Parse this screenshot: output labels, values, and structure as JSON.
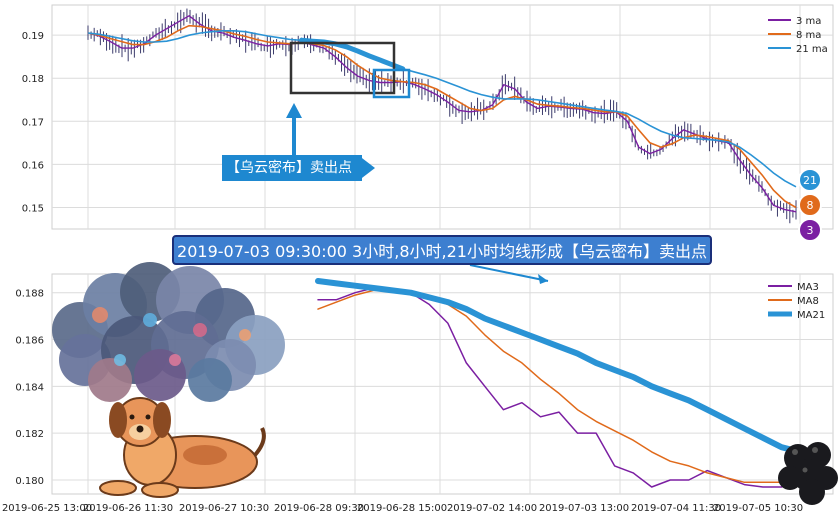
{
  "chart_data": [
    {
      "type": "line",
      "title": "",
      "xlabel": "",
      "ylabel": "",
      "ylim": [
        0.145,
        0.197
      ],
      "yticks": [
        0.15,
        0.16,
        0.17,
        0.18,
        0.19
      ],
      "grid": true,
      "legend_position": "top-right",
      "series": [
        {
          "name": "3 ma",
          "color": "#7b1fa2",
          "values": [
            0.1905,
            0.1898,
            0.1885,
            0.187,
            0.187,
            0.188,
            0.19,
            0.1915,
            0.193,
            0.1945,
            0.1925,
            0.191,
            0.1905,
            0.1895,
            0.1888,
            0.188,
            0.1875,
            0.188,
            0.1878,
            0.1885,
            0.1877,
            0.187,
            0.185,
            0.1825,
            0.1805,
            0.1795,
            0.179,
            0.179,
            0.1792,
            0.1786,
            0.1775,
            0.1762,
            0.1745,
            0.1725,
            0.1722,
            0.1725,
            0.1738,
            0.1785,
            0.1775,
            0.1745,
            0.173,
            0.1735,
            0.1733,
            0.173,
            0.1728,
            0.172,
            0.1718,
            0.1722,
            0.17,
            0.164,
            0.1625,
            0.1635,
            0.166,
            0.168,
            0.167,
            0.166,
            0.1655,
            0.165,
            0.161,
            0.1575,
            0.1545,
            0.1505,
            0.1495,
            0.149
          ]
        },
        {
          "name": "8 ma",
          "color": "#e06a1b",
          "values": [
            0.1905,
            0.19,
            0.1892,
            0.1885,
            0.1878,
            0.1878,
            0.1885,
            0.1895,
            0.191,
            0.1922,
            0.192,
            0.1915,
            0.191,
            0.1903,
            0.1897,
            0.189,
            0.1884,
            0.1882,
            0.188,
            0.1883,
            0.188,
            0.1876,
            0.1866,
            0.185,
            0.183,
            0.1813,
            0.18,
            0.1795,
            0.1792,
            0.179,
            0.1785,
            0.1775,
            0.176,
            0.1745,
            0.173,
            0.1725,
            0.173,
            0.175,
            0.1758,
            0.175,
            0.174,
            0.1737,
            0.1735,
            0.1732,
            0.173,
            0.1726,
            0.1722,
            0.1722,
            0.1712,
            0.168,
            0.165,
            0.164,
            0.1648,
            0.1662,
            0.1668,
            0.1665,
            0.166,
            0.1655,
            0.1635,
            0.1605,
            0.1575,
            0.154,
            0.1515,
            0.15
          ]
        },
        {
          "name": "21 ma",
          "color": "#2a93d5",
          "values": [
            0.1905,
            0.1902,
            0.1897,
            0.1892,
            0.1887,
            0.1884,
            0.1884,
            0.1886,
            0.1892,
            0.19,
            0.1905,
            0.1908,
            0.191,
            0.191,
            0.1908,
            0.1903,
            0.1898,
            0.1894,
            0.189,
            0.1888,
            0.1886,
            0.1884,
            0.188,
            0.1873,
            0.1863,
            0.1852,
            0.1842,
            0.1832,
            0.1822,
            0.1815,
            0.1808,
            0.18,
            0.179,
            0.178,
            0.177,
            0.1762,
            0.1756,
            0.1752,
            0.1752,
            0.1752,
            0.175,
            0.1746,
            0.1742,
            0.1738,
            0.1734,
            0.173,
            0.1726,
            0.1723,
            0.1718,
            0.1705,
            0.169,
            0.1677,
            0.1668,
            0.1662,
            0.166,
            0.1658,
            0.1656,
            0.1652,
            0.164,
            0.1622,
            0.1602,
            0.158,
            0.1562,
            0.1548
          ]
        }
      ]
    },
    {
      "type": "line",
      "title": "",
      "xlabel": "",
      "ylabel": "",
      "ylim": [
        0.1794,
        0.1888
      ],
      "yticks": [
        0.18,
        0.182,
        0.184,
        0.186,
        0.188
      ],
      "x_tick_labels": [
        "2019-06-25 13:00",
        "2019-06-26 11:30",
        "2019-06-27 10:30",
        "2019-06-28 09:30",
        "2019-06-28 15:00",
        "2019-07-02 14:00",
        "2019-07-03 13:00",
        "2019-07-04 11:30",
        "2019-07-05 10:30"
      ],
      "grid": true,
      "legend_position": "top-right",
      "series": [
        {
          "name": "MA3",
          "color": "#7b1fa2",
          "values": [
            0.1877,
            0.1877,
            0.188,
            0.1882,
            0.1881,
            0.188,
            0.1875,
            0.1867,
            0.185,
            0.184,
            0.183,
            0.1833,
            0.1827,
            0.1829,
            0.182,
            0.182,
            0.1806,
            0.1803,
            0.1797,
            0.18,
            0.18,
            0.1804,
            0.1801,
            0.1798,
            0.1797,
            0.1797,
            0.18
          ]
        },
        {
          "name": "MA8",
          "color": "#e06a1b",
          "values": [
            0.1873,
            0.1876,
            0.1879,
            0.1881,
            0.1881,
            0.188,
            0.1878,
            0.1875,
            0.187,
            0.1862,
            0.1855,
            0.185,
            0.1843,
            0.1837,
            0.183,
            0.1825,
            0.1821,
            0.1817,
            0.1812,
            0.1808,
            0.1806,
            0.1803,
            0.1801,
            0.1799,
            0.1799,
            0.1799,
            0.1799
          ]
        },
        {
          "name": "MA21",
          "color": "#2a93d5",
          "values": [
            0.1885,
            0.1884,
            0.1883,
            0.1882,
            0.1881,
            0.188,
            0.1878,
            0.1876,
            0.1873,
            0.1869,
            0.1866,
            0.1863,
            0.186,
            0.1857,
            0.1854,
            0.185,
            0.1847,
            0.1844,
            0.184,
            0.1837,
            0.1834,
            0.183,
            0.1826,
            0.1822,
            0.1818,
            0.1814,
            0.1812
          ]
        }
      ]
    }
  ],
  "markers": {
    "ma21_badge": "21",
    "ma8_badge": "8",
    "ma3_badge": "3",
    "ma21_color": "#2a93d5",
    "ma8_color": "#e06a1b",
    "ma3_color": "#7b1fa2"
  },
  "annotations": {
    "signal_label": "【乌云密布】卖出点",
    "banner_text": "2019-07-03 09:30:00 3小时,8小时,21小时均线形成【乌云密布】卖出点"
  },
  "illustrations": [
    "storm-cloud",
    "dog",
    "small-dark-cloud"
  ]
}
